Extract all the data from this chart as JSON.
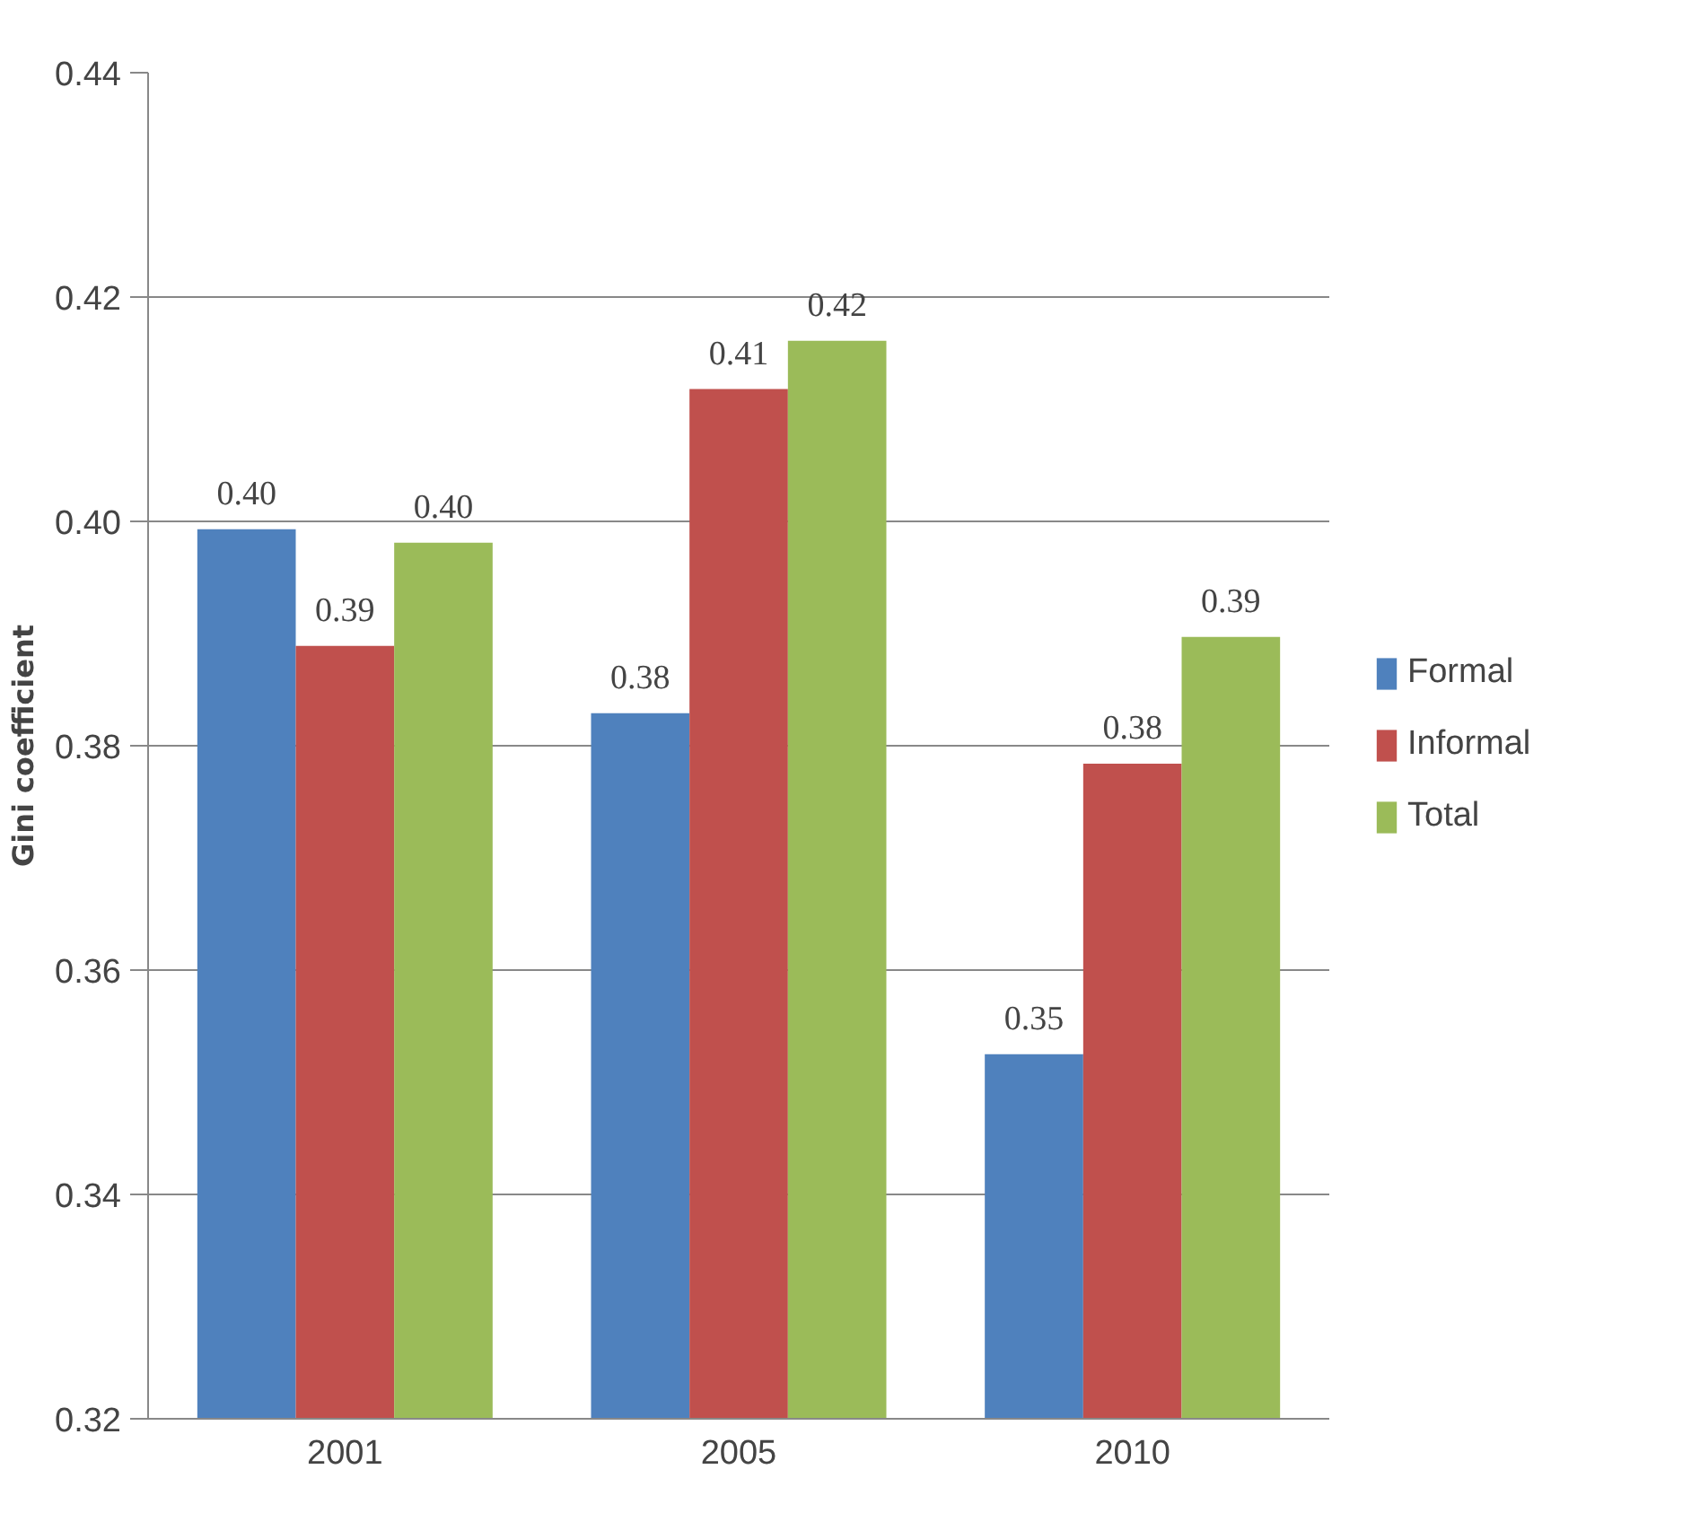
{
  "chart_data": {
    "type": "bar",
    "ylabel": "Gini coefficient",
    "categories": [
      "2001",
      "2005",
      "2010"
    ],
    "series": [
      {
        "name": "Formal",
        "color": "#4f81bd",
        "values": [
          0.3993,
          0.3829,
          0.3525
        ],
        "value_labels": [
          "0.40",
          "0.38",
          "0.35"
        ]
      },
      {
        "name": "Informal",
        "color": "#c0504d",
        "values": [
          0.3889,
          0.4118,
          0.3784
        ],
        "value_labels": [
          "0.39",
          "0.41",
          "0.38"
        ]
      },
      {
        "name": "Total",
        "color": "#9bbb59",
        "values": [
          0.3981,
          0.4161,
          0.3897
        ],
        "value_labels": [
          "0.40",
          "0.42",
          "0.39"
        ]
      }
    ],
    "ylim": [
      0.32,
      0.44
    ],
    "yticks": [
      "0.32",
      "0.34",
      "0.36",
      "0.38",
      "0.40",
      "0.42",
      "0.44"
    ],
    "grid": "y",
    "legend": "right"
  }
}
